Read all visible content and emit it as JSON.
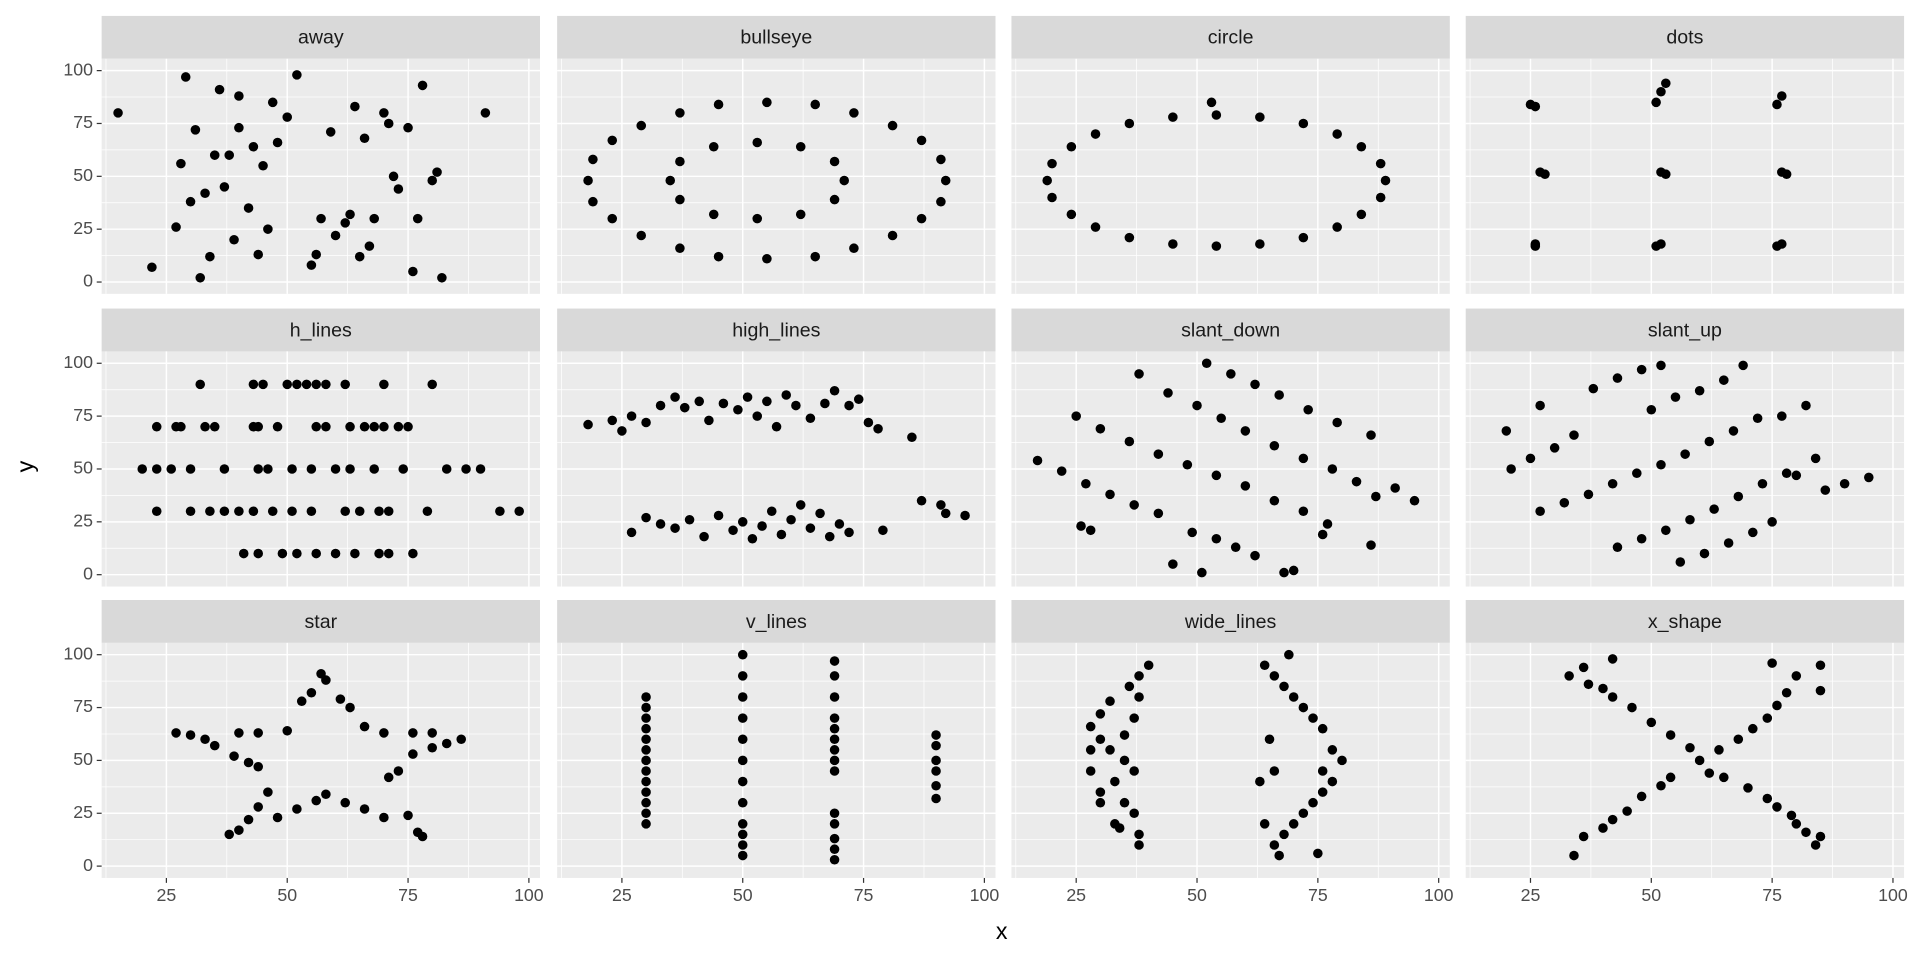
{
  "chart_data": {
    "type": "scatter",
    "x_label": "x",
    "y_label": "y",
    "xlim": [
      11.6,
      102.3
    ],
    "ylim": [
      -5.6,
      105.6
    ],
    "xticks": [
      25,
      50,
      75,
      100
    ],
    "yticks": [
      0,
      25,
      50,
      75,
      100
    ],
    "grid": true,
    "color": "#000000",
    "facets": [
      {
        "title": "away",
        "x": [
          15,
          22,
          29,
          31,
          33,
          35,
          32,
          28,
          27,
          30,
          36,
          38,
          40,
          42,
          44,
          45,
          47,
          48,
          50,
          52,
          55,
          57,
          40,
          43,
          46,
          39,
          34,
          37,
          60,
          62,
          64,
          65,
          66,
          68,
          70,
          71,
          73,
          75,
          77,
          78,
          80,
          81,
          82,
          91,
          56,
          59,
          63,
          67,
          72,
          76
        ],
        "y": [
          80,
          7,
          97,
          72,
          42,
          60,
          2,
          56,
          26,
          38,
          91,
          60,
          73,
          35,
          13,
          55,
          85,
          66,
          78,
          98,
          8,
          30,
          88,
          64,
          25,
          20,
          12,
          45,
          22,
          28,
          83,
          12,
          68,
          30,
          80,
          75,
          44,
          73,
          30,
          93,
          48,
          52,
          2,
          80,
          13,
          71,
          32,
          17,
          50,
          5
        ]
      },
      {
        "title": "bullseye",
        "x": [
          92,
          91,
          87,
          81,
          73,
          65,
          55,
          45,
          37,
          29,
          23,
          19,
          18,
          19,
          23,
          29,
          37,
          45,
          55,
          65,
          73,
          81,
          87,
          91,
          71,
          69,
          62,
          53,
          44,
          37,
          35,
          37,
          44,
          53,
          62,
          69
        ],
        "y": [
          48,
          58,
          67,
          74,
          80,
          84,
          85,
          84,
          80,
          74,
          67,
          58,
          48,
          38,
          30,
          22,
          16,
          12,
          11,
          12,
          16,
          22,
          30,
          38,
          48,
          57,
          64,
          66,
          64,
          57,
          48,
          39,
          32,
          30,
          32,
          39
        ]
      },
      {
        "title": "circle",
        "x": [
          89,
          88,
          84,
          79,
          72,
          63,
          54,
          45,
          36,
          29,
          24,
          20,
          19,
          20,
          24,
          29,
          36,
          45,
          54,
          63,
          72,
          79,
          84,
          88,
          53
        ],
        "y": [
          48,
          56,
          64,
          70,
          75,
          78,
          79,
          78,
          75,
          70,
          64,
          56,
          48,
          40,
          32,
          26,
          21,
          18,
          17,
          18,
          21,
          26,
          32,
          40,
          85
        ]
      },
      {
        "title": "dots",
        "x": [
          26,
          26,
          27,
          28,
          26,
          25,
          51,
          52,
          52,
          53,
          51,
          52,
          53,
          76,
          77,
          77,
          78,
          76,
          77
        ],
        "y": [
          17,
          18,
          52,
          51,
          83,
          84,
          17,
          18,
          52,
          51,
          85,
          90,
          94,
          17,
          18,
          52,
          51,
          84,
          88
        ]
      },
      {
        "title": "h_lines",
        "x": [
          32,
          43,
          45,
          50,
          52,
          54,
          56,
          58,
          62,
          70,
          80,
          23,
          27,
          28,
          33,
          35,
          43,
          44,
          48,
          56,
          58,
          63,
          66,
          68,
          70,
          73,
          75,
          20,
          23,
          26,
          30,
          37,
          44,
          46,
          51,
          55,
          60,
          63,
          68,
          74,
          83,
          87,
          90,
          23,
          30,
          34,
          37,
          40,
          43,
          47,
          51,
          55,
          62,
          65,
          69,
          71,
          79,
          94,
          98,
          41,
          44,
          49,
          52,
          56,
          60,
          64,
          69,
          71,
          76
        ],
        "y": [
          90,
          90,
          90,
          90,
          90,
          90,
          90,
          90,
          90,
          90,
          90,
          70,
          70,
          70,
          70,
          70,
          70,
          70,
          70,
          70,
          70,
          70,
          70,
          70,
          70,
          70,
          70,
          50,
          50,
          50,
          50,
          50,
          50,
          50,
          50,
          50,
          50,
          50,
          50,
          50,
          50,
          50,
          50,
          30,
          30,
          30,
          30,
          30,
          30,
          30,
          30,
          30,
          30,
          30,
          30,
          30,
          30,
          30,
          30,
          10,
          10,
          10,
          10,
          10,
          10,
          10,
          10,
          10,
          10
        ]
      },
      {
        "title": "high_lines",
        "x": [
          18,
          23,
          25,
          27,
          30,
          33,
          36,
          38,
          41,
          43,
          46,
          49,
          51,
          53,
          55,
          57,
          59,
          61,
          64,
          67,
          69,
          72,
          74,
          76,
          78,
          85,
          27,
          30,
          33,
          36,
          39,
          42,
          45,
          48,
          50,
          52,
          54,
          56,
          58,
          60,
          62,
          64,
          66,
          68,
          70,
          72,
          79,
          87,
          91,
          92,
          96
        ],
        "y": [
          71,
          73,
          68,
          75,
          72,
          80,
          84,
          79,
          82,
          73,
          81,
          78,
          84,
          75,
          82,
          70,
          85,
          80,
          74,
          81,
          87,
          80,
          83,
          72,
          69,
          65,
          20,
          27,
          24,
          22,
          26,
          18,
          28,
          21,
          25,
          17,
          23,
          30,
          19,
          26,
          33,
          22,
          29,
          18,
          24,
          20,
          21,
          35,
          33,
          29,
          28
        ]
      },
      {
        "title": "slant_down",
        "x": [
          17,
          22,
          27,
          32,
          37,
          42,
          25,
          30,
          36,
          42,
          48,
          54,
          60,
          66,
          72,
          77,
          38,
          44,
          50,
          55,
          60,
          66,
          72,
          78,
          83,
          87,
          52,
          57,
          62,
          67,
          73,
          79,
          86,
          49,
          54,
          58,
          62,
          68,
          70,
          26,
          28,
          45,
          51,
          91,
          95,
          76,
          86
        ],
        "y": [
          54,
          49,
          43,
          38,
          33,
          29,
          75,
          69,
          63,
          57,
          52,
          47,
          42,
          35,
          30,
          24,
          95,
          86,
          80,
          74,
          68,
          61,
          55,
          50,
          44,
          37,
          100,
          95,
          90,
          85,
          78,
          72,
          66,
          20,
          17,
          13,
          9,
          1,
          2,
          23,
          21,
          5,
          1,
          41,
          35,
          19,
          14
        ]
      },
      {
        "title": "slant_up",
        "x": [
          20,
          27,
          38,
          43,
          48,
          52,
          21,
          25,
          30,
          34,
          27,
          32,
          37,
          42,
          47,
          52,
          57,
          62,
          67,
          72,
          77,
          82,
          43,
          48,
          53,
          58,
          63,
          68,
          73,
          78,
          84,
          56,
          61,
          66,
          71,
          75,
          50,
          55,
          60,
          65,
          69,
          86,
          90,
          95,
          80
        ],
        "y": [
          68,
          80,
          88,
          93,
          97,
          99,
          50,
          55,
          60,
          66,
          30,
          34,
          38,
          43,
          48,
          52,
          57,
          63,
          68,
          74,
          75,
          80,
          13,
          17,
          21,
          26,
          31,
          37,
          43,
          48,
          55,
          6,
          10,
          15,
          20,
          25,
          78,
          84,
          87,
          92,
          99,
          40,
          43,
          46,
          47
        ]
      },
      {
        "title": "star",
        "x": [
          27,
          30,
          33,
          35,
          39,
          42,
          44,
          38,
          40,
          42,
          44,
          46,
          48,
          52,
          56,
          58,
          62,
          66,
          70,
          71,
          73,
          75,
          77,
          78,
          76,
          80,
          83,
          86,
          80,
          76,
          70,
          66,
          63,
          61,
          58,
          57,
          55,
          53,
          50,
          44,
          40
        ],
        "y": [
          63,
          62,
          60,
          57,
          52,
          49,
          47,
          15,
          17,
          22,
          28,
          35,
          23,
          27,
          31,
          34,
          30,
          27,
          23,
          42,
          45,
          24,
          16,
          14,
          53,
          56,
          58,
          60,
          63,
          63,
          63,
          66,
          75,
          79,
          88,
          91,
          82,
          78,
          64,
          63,
          63
        ]
      },
      {
        "title": "v_lines",
        "x": [
          30,
          30,
          30,
          30,
          30,
          30,
          30,
          30,
          30,
          30,
          30,
          30,
          30,
          50,
          50,
          50,
          50,
          50,
          50,
          50,
          50,
          50,
          50,
          50,
          50,
          69,
          69,
          69,
          69,
          69,
          69,
          69,
          69,
          69,
          69,
          69,
          69,
          69,
          69,
          90,
          90,
          90,
          90,
          90,
          90
        ],
        "y": [
          20,
          25,
          30,
          35,
          40,
          45,
          50,
          55,
          60,
          65,
          70,
          75,
          80,
          5,
          10,
          15,
          20,
          30,
          40,
          50,
          60,
          70,
          80,
          90,
          100,
          3,
          8,
          13,
          20,
          25,
          45,
          50,
          55,
          60,
          65,
          70,
          80,
          90,
          97,
          32,
          38,
          45,
          50,
          57,
          62
        ]
      },
      {
        "title": "wide_lines",
        "x": [
          28,
          30,
          32,
          35,
          37,
          33,
          30,
          35,
          37,
          33,
          38,
          38,
          36,
          38,
          40,
          32,
          30,
          28,
          35,
          37,
          38,
          28,
          30,
          34,
          64,
          66,
          68,
          70,
          72,
          74,
          76,
          78,
          80,
          78,
          76,
          74,
          72,
          70,
          68,
          66,
          67,
          65,
          63,
          64,
          66,
          69,
          75,
          76
        ],
        "y": [
          66,
          60,
          55,
          50,
          45,
          40,
          35,
          30,
          25,
          20,
          15,
          10,
          85,
          90,
          95,
          78,
          72,
          55,
          62,
          70,
          80,
          45,
          30,
          18,
          95,
          90,
          85,
          80,
          75,
          70,
          65,
          55,
          50,
          40,
          35,
          30,
          25,
          20,
          15,
          10,
          5,
          60,
          40,
          20,
          45,
          100,
          6,
          45
        ]
      },
      {
        "title": "x_shape",
        "x": [
          33,
          37,
          40,
          42,
          46,
          50,
          54,
          58,
          62,
          65,
          70,
          74,
          76,
          79,
          80,
          82,
          84,
          85,
          34,
          36,
          40,
          42,
          45,
          48,
          52,
          54,
          60,
          64,
          68,
          71,
          74,
          76,
          78,
          80,
          85,
          75,
          42,
          36,
          85
        ],
        "y": [
          90,
          86,
          84,
          80,
          75,
          68,
          62,
          56,
          44,
          42,
          37,
          32,
          28,
          24,
          20,
          16,
          10,
          14,
          5,
          14,
          18,
          22,
          26,
          33,
          38,
          42,
          50,
          55,
          60,
          65,
          70,
          76,
          82,
          90,
          95,
          96,
          98,
          94,
          83
        ]
      }
    ]
  }
}
